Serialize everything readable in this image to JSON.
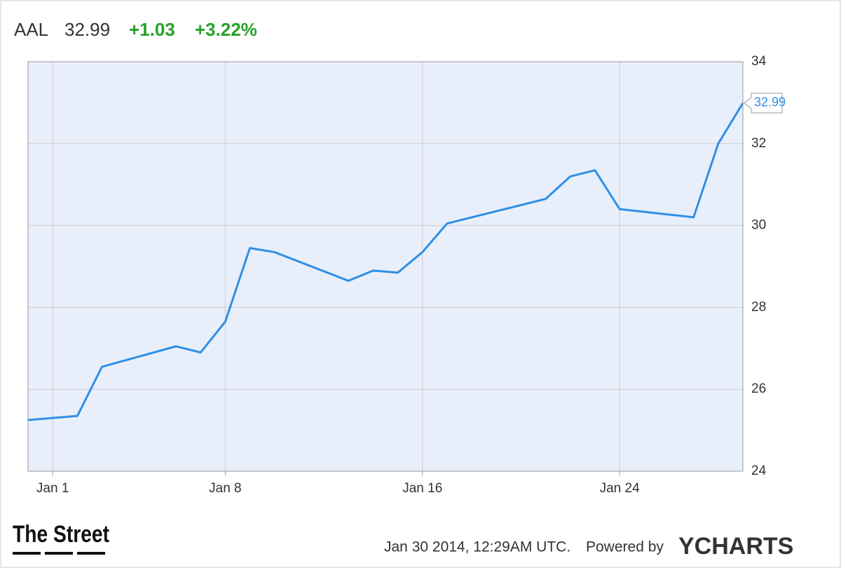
{
  "header": {
    "symbol": "AAL",
    "price": "32.99",
    "change": "+1.03",
    "change_pct": "+3.22%"
  },
  "chart_data": {
    "type": "line",
    "x": [
      0,
      2,
      3,
      6,
      7,
      8,
      9,
      10,
      13,
      14,
      15,
      16,
      17,
      21,
      22,
      23,
      24,
      27,
      28,
      29
    ],
    "series": [
      {
        "name": "AAL",
        "color": "#2f8fe6",
        "values": [
          25.25,
          25.35,
          26.55,
          27.05,
          26.9,
          27.65,
          29.45,
          29.35,
          28.65,
          28.9,
          28.85,
          29.35,
          30.05,
          30.65,
          31.2,
          31.35,
          30.4,
          30.2,
          32.0,
          32.99
        ]
      }
    ],
    "xlim": [
      0,
      29
    ],
    "xticks": [
      {
        "value": 1,
        "label": "Jan 1"
      },
      {
        "value": 8,
        "label": "Jan 8"
      },
      {
        "value": 16,
        "label": "Jan 16"
      },
      {
        "value": 24,
        "label": "Jan 24"
      }
    ],
    "ylim": [
      24,
      34
    ],
    "yticks": [
      24,
      26,
      28,
      30,
      32,
      34
    ],
    "grid": true
  },
  "footer": {
    "source": "The Street",
    "timestamp": "Jan 30 2014, 12:29AM UTC.",
    "powered": "Powered by",
    "brand": "YCHARTS"
  }
}
